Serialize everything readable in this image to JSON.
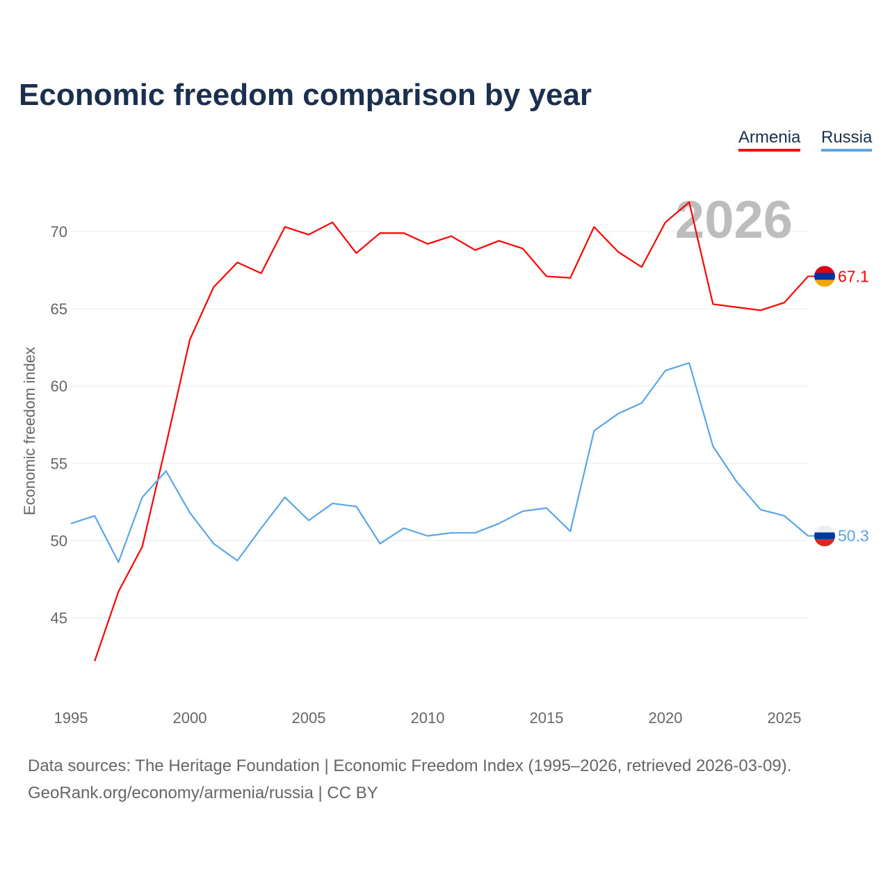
{
  "title": "Economic freedom comparison by year",
  "legend": [
    "Armenia",
    "Russia"
  ],
  "footer": {
    "line1": "Data sources: The Heritage Foundation | Economic Freedom Index (1995–2026, retrieved 2026-03-09).",
    "line2": "GeoRank.org/economy/armenia/russia | CC BY"
  },
  "chart_data": {
    "type": "line",
    "title": "Economic freedom comparison by year",
    "ylabel": "Economic freedom index",
    "xlabel": "",
    "watermark": "2026",
    "xlim": [
      1995,
      2026
    ],
    "ylim": [
      40,
      73
    ],
    "xticks": [
      "1995",
      "2000",
      "2005",
      "2010",
      "2015",
      "2020",
      "2025"
    ],
    "yticks": [
      "45",
      "50",
      "55",
      "60",
      "65",
      "70"
    ],
    "grid": true,
    "legend_position": "top-right",
    "series": [
      {
        "name": "Armenia",
        "color": "#ff0000",
        "end_label": "67.1",
        "x": [
          1996,
          1997,
          1998,
          1999,
          2000,
          2001,
          2002,
          2003,
          2004,
          2005,
          2006,
          2007,
          2008,
          2009,
          2010,
          2011,
          2012,
          2013,
          2014,
          2015,
          2016,
          2017,
          2018,
          2019,
          2020,
          2021,
          2022,
          2023,
          2024,
          2025,
          2026
        ],
        "values": [
          42.2,
          46.7,
          49.6,
          56.2,
          63.0,
          66.4,
          68.0,
          67.3,
          70.3,
          69.8,
          70.6,
          68.6,
          69.9,
          69.9,
          69.2,
          69.7,
          68.8,
          69.4,
          68.9,
          67.1,
          67.0,
          70.3,
          68.7,
          67.7,
          70.6,
          71.9,
          65.3,
          65.1,
          64.9,
          65.4,
          67.1
        ]
      },
      {
        "name": "Russia",
        "color": "#5aa5e8",
        "end_label": "50.3",
        "x": [
          1995,
          1996,
          1997,
          1998,
          1999,
          2000,
          2001,
          2002,
          2003,
          2004,
          2005,
          2006,
          2007,
          2008,
          2009,
          2010,
          2011,
          2012,
          2013,
          2014,
          2015,
          2016,
          2017,
          2018,
          2019,
          2020,
          2021,
          2022,
          2023,
          2024,
          2025,
          2026
        ],
        "values": [
          51.1,
          51.6,
          48.6,
          52.8,
          54.5,
          51.8,
          49.8,
          48.7,
          50.8,
          52.8,
          51.3,
          52.4,
          52.2,
          49.8,
          50.8,
          50.3,
          50.5,
          50.5,
          51.1,
          51.9,
          52.1,
          50.6,
          57.1,
          58.2,
          58.9,
          61.0,
          61.5,
          56.1,
          53.8,
          52.0,
          51.6,
          50.3
        ]
      }
    ]
  }
}
